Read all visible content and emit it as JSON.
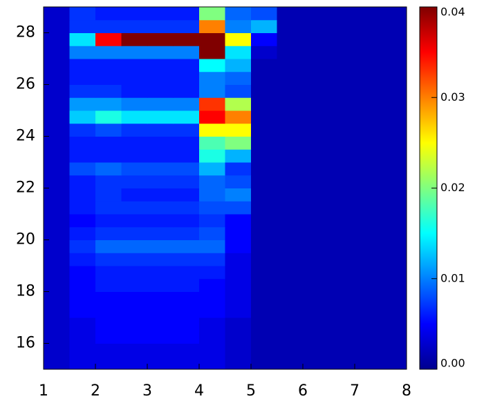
{
  "chart_data": {
    "type": "heatmap",
    "xbins": [
      1,
      1.5,
      2,
      2.5,
      3,
      3.5,
      4,
      4.5,
      5,
      5.5,
      6,
      6.5,
      7,
      7.5,
      8
    ],
    "ybins": [
      15,
      15.5,
      16,
      16.5,
      17,
      17.5,
      18,
      18.5,
      19,
      19.5,
      20,
      20.5,
      21,
      21.5,
      22,
      22.5,
      23,
      23.5,
      24,
      24.5,
      25,
      25.5,
      26,
      26.5,
      27,
      27.5,
      28,
      28.5,
      29
    ],
    "z": [
      [
        0.003,
        0.004,
        0.004,
        0.004,
        0.004,
        0.004,
        0.004,
        0.003,
        0.002,
        0.002,
        0.002,
        0.002,
        0.002,
        0.002
      ],
      [
        0.003,
        0.004,
        0.004,
        0.004,
        0.004,
        0.004,
        0.004,
        0.003,
        0.002,
        0.002,
        0.002,
        0.002,
        0.002,
        0.002
      ],
      [
        0.003,
        0.004,
        0.005,
        0.005,
        0.005,
        0.005,
        0.004,
        0.003,
        0.002,
        0.002,
        0.002,
        0.002,
        0.002,
        0.002
      ],
      [
        0.003,
        0.004,
        0.005,
        0.005,
        0.005,
        0.005,
        0.004,
        0.003,
        0.002,
        0.002,
        0.002,
        0.002,
        0.002,
        0.002
      ],
      [
        0.003,
        0.005,
        0.005,
        0.005,
        0.005,
        0.005,
        0.005,
        0.004,
        0.002,
        0.002,
        0.002,
        0.002,
        0.002,
        0.002
      ],
      [
        0.003,
        0.005,
        0.005,
        0.005,
        0.005,
        0.005,
        0.005,
        0.004,
        0.002,
        0.002,
        0.002,
        0.002,
        0.002,
        0.002
      ],
      [
        0.003,
        0.005,
        0.006,
        0.006,
        0.006,
        0.006,
        0.005,
        0.004,
        0.002,
        0.002,
        0.002,
        0.002,
        0.002,
        0.002
      ],
      [
        0.003,
        0.005,
        0.006,
        0.006,
        0.006,
        0.006,
        0.006,
        0.004,
        0.002,
        0.002,
        0.002,
        0.002,
        0.002,
        0.002
      ],
      [
        0.003,
        0.006,
        0.007,
        0.007,
        0.007,
        0.007,
        0.007,
        0.004,
        0.002,
        0.002,
        0.002,
        0.002,
        0.002,
        0.002
      ],
      [
        0.003,
        0.007,
        0.009,
        0.009,
        0.009,
        0.009,
        0.009,
        0.005,
        0.002,
        0.002,
        0.002,
        0.002,
        0.002,
        0.002
      ],
      [
        0.003,
        0.006,
        0.007,
        0.007,
        0.007,
        0.007,
        0.008,
        0.005,
        0.002,
        0.002,
        0.002,
        0.002,
        0.002,
        0.002
      ],
      [
        0.003,
        0.005,
        0.006,
        0.006,
        0.006,
        0.006,
        0.007,
        0.005,
        0.002,
        0.002,
        0.002,
        0.002,
        0.002,
        0.002
      ],
      [
        0.003,
        0.006,
        0.007,
        0.007,
        0.007,
        0.007,
        0.008,
        0.008,
        0.002,
        0.002,
        0.002,
        0.002,
        0.002,
        0.002
      ],
      [
        0.003,
        0.006,
        0.007,
        0.006,
        0.006,
        0.006,
        0.009,
        0.01,
        0.002,
        0.002,
        0.002,
        0.002,
        0.002,
        0.002
      ],
      [
        0.003,
        0.006,
        0.007,
        0.007,
        0.007,
        0.007,
        0.009,
        0.008,
        0.002,
        0.002,
        0.002,
        0.002,
        0.002,
        0.002
      ],
      [
        0.003,
        0.008,
        0.009,
        0.008,
        0.008,
        0.008,
        0.012,
        0.007,
        0.002,
        0.002,
        0.002,
        0.002,
        0.002,
        0.002
      ],
      [
        0.003,
        0.006,
        0.006,
        0.006,
        0.006,
        0.006,
        0.016,
        0.012,
        0.002,
        0.002,
        0.002,
        0.002,
        0.002,
        0.002
      ],
      [
        0.003,
        0.006,
        0.006,
        0.006,
        0.006,
        0.006,
        0.018,
        0.02,
        0.002,
        0.002,
        0.002,
        0.002,
        0.002,
        0.002
      ],
      [
        0.003,
        0.007,
        0.008,
        0.007,
        0.007,
        0.007,
        0.025,
        0.025,
        0.002,
        0.002,
        0.002,
        0.002,
        0.002,
        0.002
      ],
      [
        0.003,
        0.013,
        0.016,
        0.014,
        0.014,
        0.014,
        0.035,
        0.03,
        0.002,
        0.002,
        0.002,
        0.002,
        0.002,
        0.002
      ],
      [
        0.003,
        0.011,
        0.011,
        0.01,
        0.01,
        0.01,
        0.033,
        0.022,
        0.002,
        0.002,
        0.002,
        0.002,
        0.002,
        0.002
      ],
      [
        0.003,
        0.007,
        0.007,
        0.006,
        0.006,
        0.006,
        0.01,
        0.008,
        0.002,
        0.002,
        0.002,
        0.002,
        0.002,
        0.002
      ],
      [
        0.003,
        0.006,
        0.006,
        0.006,
        0.006,
        0.006,
        0.01,
        0.009,
        0.002,
        0.002,
        0.002,
        0.002,
        0.002,
        0.002
      ],
      [
        0.003,
        0.006,
        0.006,
        0.006,
        0.006,
        0.006,
        0.015,
        0.012,
        0.002,
        0.002,
        0.002,
        0.002,
        0.002,
        0.002
      ],
      [
        0.003,
        0.01,
        0.01,
        0.01,
        0.01,
        0.01,
        0.04,
        0.014,
        0.003,
        0.002,
        0.002,
        0.002,
        0.002,
        0.002
      ],
      [
        0.003,
        0.014,
        0.035,
        0.04,
        0.04,
        0.04,
        0.04,
        0.025,
        0.005,
        0.002,
        0.002,
        0.002,
        0.002,
        0.002
      ],
      [
        0.003,
        0.007,
        0.007,
        0.007,
        0.007,
        0.007,
        0.03,
        0.01,
        0.012,
        0.002,
        0.002,
        0.002,
        0.002,
        0.002
      ],
      [
        0.003,
        0.007,
        0.006,
        0.006,
        0.006,
        0.006,
        0.02,
        0.009,
        0.008,
        0.002,
        0.002,
        0.002,
        0.002,
        0.002
      ]
    ],
    "xlim": [
      1,
      8
    ],
    "xticks": [
      1,
      2,
      3,
      4,
      5,
      6,
      7,
      8
    ],
    "ylim": [
      15,
      29
    ],
    "yticks": [
      16,
      18,
      20,
      22,
      24,
      26,
      28
    ],
    "zlim": [
      0,
      0.04
    ],
    "zticks": [
      {
        "value": 0,
        "label": "0.00"
      },
      0.01,
      0.02,
      0.03,
      0.04
    ],
    "colormap": "jet"
  }
}
